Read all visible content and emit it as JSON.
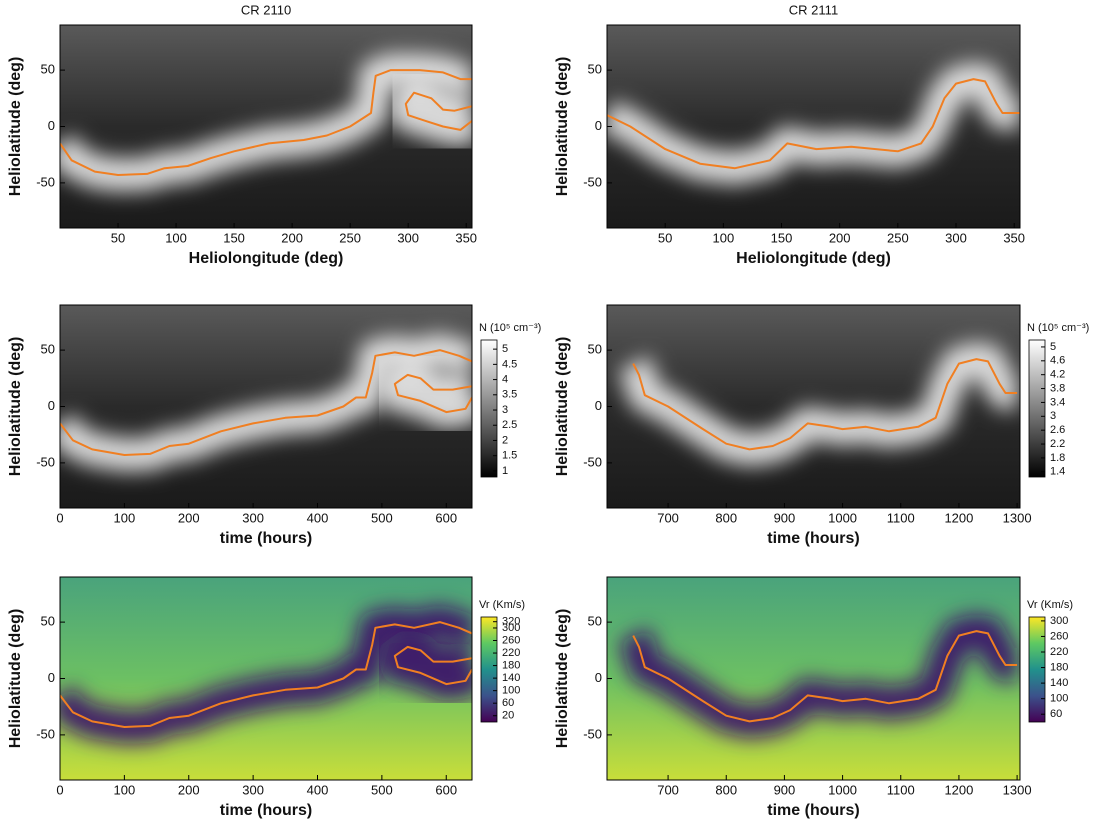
{
  "chart_data": [
    {
      "type": "heatmap",
      "title": "CR 2110",
      "xlabel": "Heliolongitude (deg)",
      "ylabel": "Heliolatitude (deg)",
      "xlim": [
        0,
        355
      ],
      "ylim": [
        -90,
        90
      ],
      "xticks": [
        50,
        100,
        150,
        200,
        250,
        300,
        350
      ],
      "yticks": [
        -50,
        0,
        50
      ],
      "colormap": "gray",
      "series": [
        {
          "color": "#f07f22",
          "x": [
            0,
            10,
            30,
            50,
            75,
            90,
            110,
            130,
            150,
            180,
            210,
            230,
            250,
            262,
            268,
            270,
            272,
            285,
            310,
            330,
            345,
            355
          ],
          "values": [
            -15,
            -30,
            -40,
            -43,
            -42,
            -37,
            -35,
            -28,
            -22,
            -15,
            -12,
            -8,
            0,
            8,
            12,
            30,
            45,
            50,
            50,
            48,
            42,
            42
          ]
        },
        {
          "color": "#f07f22",
          "x": [
            355,
            340,
            330,
            320,
            305,
            298,
            300,
            315,
            330,
            345,
            355
          ],
          "values": [
            18,
            14,
            15,
            25,
            30,
            20,
            10,
            5,
            0,
            -3,
            5
          ]
        }
      ]
    },
    {
      "type": "heatmap",
      "title": "CR 2111",
      "xlabel": "Heliolongitude (deg)",
      "ylabel": "Heliolatitude (deg)",
      "xlim": [
        0,
        355
      ],
      "ylim": [
        -90,
        90
      ],
      "xticks": [
        50,
        100,
        150,
        200,
        250,
        300,
        350
      ],
      "yticks": [
        -50,
        0,
        50
      ],
      "colormap": "gray",
      "series": [
        {
          "color": "#f07f22",
          "x": [
            0,
            20,
            50,
            80,
            110,
            140,
            155,
            180,
            210,
            250,
            270,
            280,
            290,
            300,
            315,
            325,
            335,
            340,
            355
          ],
          "values": [
            10,
            0,
            -20,
            -33,
            -37,
            -30,
            -15,
            -20,
            -18,
            -22,
            -15,
            0,
            25,
            38,
            42,
            40,
            20,
            12,
            12
          ]
        }
      ]
    },
    {
      "type": "heatmap",
      "xlabel": "time (hours)",
      "ylabel": "Heliolatitude (deg)",
      "xlim": [
        0,
        640
      ],
      "ylim": [
        -90,
        90
      ],
      "xticks": [
        0,
        100,
        200,
        300,
        400,
        500,
        600
      ],
      "yticks": [
        -50,
        0,
        50
      ],
      "colormap": "gray",
      "colorbar": {
        "label": "N (10⁵ cm⁻³)",
        "lim": [
          0.8,
          5.3
        ],
        "ticks": [
          1,
          1.5,
          2,
          2.5,
          3,
          3.5,
          4,
          4.5,
          5
        ]
      },
      "series": [
        {
          "color": "#f07f22",
          "x": [
            0,
            20,
            50,
            100,
            140,
            170,
            200,
            250,
            300,
            350,
            400,
            440,
            460,
            475,
            485,
            490,
            520,
            550,
            590,
            620,
            640
          ],
          "values": [
            -15,
            -30,
            -38,
            -43,
            -42,
            -35,
            -33,
            -22,
            -15,
            -10,
            -8,
            0,
            8,
            8,
            30,
            45,
            48,
            45,
            50,
            45,
            40
          ]
        },
        {
          "color": "#f07f22",
          "x": [
            640,
            610,
            580,
            560,
            540,
            520,
            525,
            560,
            600,
            630,
            640
          ],
          "values": [
            18,
            15,
            15,
            25,
            28,
            20,
            10,
            5,
            -5,
            -2,
            8
          ]
        }
      ]
    },
    {
      "type": "heatmap",
      "xlabel": "time (hours)",
      "ylabel": "Heliolatitude (deg)",
      "xlim": [
        595,
        1305
      ],
      "ylim": [
        -90,
        90
      ],
      "xticks": [
        700,
        800,
        900,
        1000,
        1100,
        1200,
        1300
      ],
      "yticks": [
        -50,
        0,
        50
      ],
      "colormap": "gray",
      "colorbar": {
        "label": "N (10⁵ cm⁻³)",
        "lim": [
          1.25,
          5.2
        ],
        "ticks": [
          1.4,
          1.8,
          2.2,
          2.6,
          3,
          3.4,
          3.8,
          4.2,
          4.6,
          5
        ]
      },
      "series": [
        {
          "color": "#f07f22",
          "x": [
            640,
            650,
            660,
            700,
            760,
            800,
            840,
            880,
            910,
            940,
            980,
            1000,
            1040,
            1080,
            1130,
            1160,
            1180,
            1200,
            1230,
            1250,
            1270,
            1280,
            1300
          ],
          "values": [
            38,
            28,
            10,
            0,
            -20,
            -33,
            -38,
            -35,
            -28,
            -15,
            -18,
            -20,
            -18,
            -22,
            -18,
            -10,
            20,
            38,
            42,
            40,
            20,
            12,
            12
          ]
        }
      ]
    },
    {
      "type": "heatmap",
      "xlabel": "time (hours)",
      "ylabel": "Heliolatitude (deg)",
      "xlim": [
        0,
        640
      ],
      "ylim": [
        -90,
        90
      ],
      "xticks": [
        0,
        100,
        200,
        300,
        400,
        500,
        600
      ],
      "yticks": [
        -50,
        0,
        50
      ],
      "colormap": "viridis",
      "colorbar": {
        "label": "Vr (Km/s)",
        "lim": [
          0,
          335
        ],
        "ticks": [
          20,
          60,
          100,
          140,
          180,
          220,
          260,
          300,
          320
        ]
      },
      "series": [
        {
          "color": "#f07f22",
          "x": [
            0,
            20,
            50,
            100,
            140,
            170,
            200,
            250,
            300,
            350,
            400,
            440,
            460,
            475,
            485,
            490,
            520,
            550,
            590,
            620,
            640
          ],
          "values": [
            -15,
            -30,
            -38,
            -43,
            -42,
            -35,
            -33,
            -22,
            -15,
            -10,
            -8,
            0,
            8,
            8,
            30,
            45,
            48,
            45,
            50,
            45,
            40
          ]
        },
        {
          "color": "#f07f22",
          "x": [
            640,
            610,
            580,
            560,
            540,
            520,
            525,
            560,
            600,
            630,
            640
          ],
          "values": [
            18,
            15,
            15,
            25,
            28,
            20,
            10,
            5,
            -5,
            -2,
            8
          ]
        }
      ]
    },
    {
      "type": "heatmap",
      "xlabel": "time (hours)",
      "ylabel": "Heliolatitude (deg)",
      "xlim": [
        595,
        1305
      ],
      "ylim": [
        -90,
        90
      ],
      "xticks": [
        700,
        800,
        900,
        1000,
        1100,
        1200,
        1300
      ],
      "yticks": [
        -50,
        0,
        50
      ],
      "colormap": "viridis",
      "colorbar": {
        "label": "Vr (Km/s)",
        "lim": [
          40,
          310
        ],
        "ticks": [
          60,
          100,
          140,
          180,
          220,
          260,
          300
        ]
      },
      "series": [
        {
          "color": "#f07f22",
          "x": [
            640,
            650,
            660,
            700,
            760,
            800,
            840,
            880,
            910,
            940,
            980,
            1000,
            1040,
            1080,
            1130,
            1160,
            1180,
            1200,
            1230,
            1250,
            1270,
            1280,
            1300
          ],
          "values": [
            38,
            28,
            10,
            0,
            -20,
            -33,
            -38,
            -35,
            -28,
            -15,
            -18,
            -20,
            -18,
            -22,
            -18,
            -10,
            20,
            38,
            42,
            40,
            20,
            12,
            12
          ]
        }
      ]
    }
  ]
}
